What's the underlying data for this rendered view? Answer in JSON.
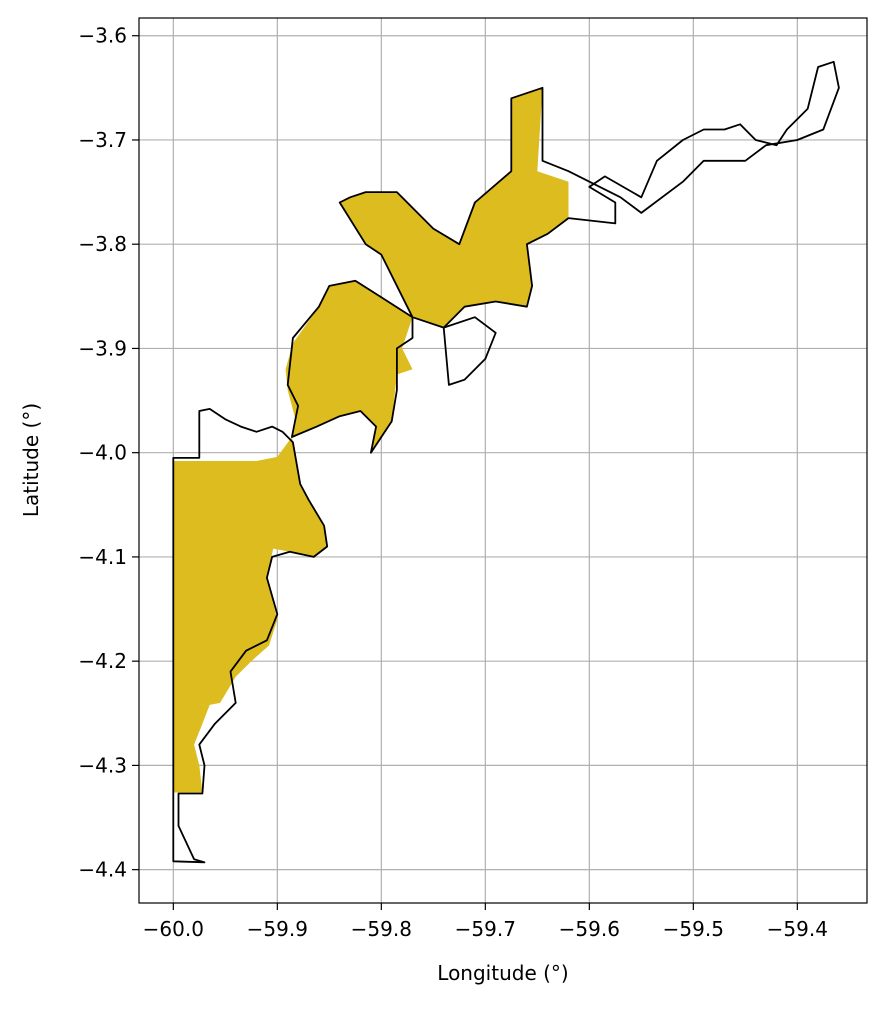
{
  "chart_data": {
    "type": "map",
    "title": "",
    "xlabel": "Longitude (°)",
    "ylabel": "Latitude (°)",
    "xlim": [
      -60.033,
      -59.333
    ],
    "ylim": [
      -4.432,
      -3.583
    ],
    "grid": true,
    "x_ticks": [
      -60.0,
      -59.9,
      -59.8,
      -59.7,
      -59.6,
      -59.5,
      -59.4
    ],
    "x_tick_labels": [
      "−60.0",
      "−59.9",
      "−59.8",
      "−59.7",
      "−59.6",
      "−59.5",
      "−59.4"
    ],
    "y_ticks": [
      -3.6,
      -3.7,
      -3.8,
      -3.9,
      -4.0,
      -4.1,
      -4.2,
      -4.3,
      -4.4
    ],
    "y_tick_labels": [
      "−3.6",
      "−3.7",
      "−3.8",
      "−3.9",
      "−4.0",
      "−4.1",
      "−4.2",
      "−4.3",
      "−4.4"
    ],
    "colors": {
      "fill": "#dcbc1f",
      "outline": "#000000",
      "grid": "#b0b0b0"
    },
    "fill_region": [
      [
        -60.0,
        -4.326
      ],
      [
        -60.0,
        -4.008
      ],
      [
        -59.96,
        -4.008
      ],
      [
        -59.92,
        -4.008
      ],
      [
        -59.9,
        -4.004
      ],
      [
        -59.886,
        -3.985
      ],
      [
        -59.878,
        -4.03
      ],
      [
        -59.87,
        -4.045
      ],
      [
        -59.855,
        -4.07
      ],
      [
        -59.852,
        -4.09
      ],
      [
        -59.865,
        -4.1
      ],
      [
        -59.888,
        -4.095
      ],
      [
        -59.904,
        -4.092
      ],
      [
        -59.91,
        -4.12
      ],
      [
        -59.905,
        -4.14
      ],
      [
        -59.9,
        -4.16
      ],
      [
        -59.908,
        -4.185
      ],
      [
        -59.925,
        -4.2
      ],
      [
        -59.94,
        -4.215
      ],
      [
        -59.955,
        -4.24
      ],
      [
        -59.965,
        -4.242
      ],
      [
        -59.972,
        -4.26
      ],
      [
        -59.98,
        -4.28
      ],
      [
        -59.975,
        -4.3
      ],
      [
        -59.972,
        -4.326
      ]
    ],
    "fill_region_2": [
      [
        -59.886,
        -3.985
      ],
      [
        -59.882,
        -3.97
      ],
      [
        -59.89,
        -3.94
      ],
      [
        -59.892,
        -3.92
      ],
      [
        -59.885,
        -3.895
      ],
      [
        -59.86,
        -3.86
      ],
      [
        -59.85,
        -3.84
      ],
      [
        -59.825,
        -3.835
      ],
      [
        -59.77,
        -3.87
      ],
      [
        -59.78,
        -3.9
      ],
      [
        -59.77,
        -3.92
      ],
      [
        -59.785,
        -3.925
      ],
      [
        -59.79,
        -3.97
      ],
      [
        -59.81,
        -4.0
      ],
      [
        -59.805,
        -3.975
      ],
      [
        -59.82,
        -3.96
      ],
      [
        -59.84,
        -3.965
      ],
      [
        -59.862,
        -3.975
      ]
    ],
    "fill_region_3": [
      [
        -59.77,
        -3.87
      ],
      [
        -59.74,
        -3.88
      ],
      [
        -59.72,
        -3.86
      ],
      [
        -59.69,
        -3.855
      ],
      [
        -59.66,
        -3.86
      ],
      [
        -59.655,
        -3.84
      ],
      [
        -59.66,
        -3.8
      ],
      [
        -59.64,
        -3.79
      ],
      [
        -59.62,
        -3.775
      ],
      [
        -59.62,
        -3.74
      ],
      [
        -59.65,
        -3.73
      ],
      [
        -59.645,
        -3.65
      ],
      [
        -59.675,
        -3.66
      ],
      [
        -59.675,
        -3.73
      ],
      [
        -59.71,
        -3.76
      ],
      [
        -59.725,
        -3.8
      ],
      [
        -59.75,
        -3.785
      ],
      [
        -59.785,
        -3.75
      ],
      [
        -59.815,
        -3.75
      ],
      [
        -59.83,
        -3.755
      ],
      [
        -59.84,
        -3.76
      ],
      [
        -59.815,
        -3.8
      ],
      [
        -59.8,
        -3.81
      ],
      [
        -59.79,
        -3.83
      ]
    ],
    "outline": [
      [
        -60.0,
        -4.392
      ],
      [
        -60.0,
        -4.005
      ],
      [
        -59.975,
        -4.005
      ],
      [
        -59.975,
        -3.96
      ],
      [
        -59.965,
        -3.958
      ],
      [
        -59.95,
        -3.968
      ],
      [
        -59.935,
        -3.975
      ],
      [
        -59.92,
        -3.98
      ],
      [
        -59.905,
        -3.975
      ],
      [
        -59.895,
        -3.98
      ],
      [
        -59.885,
        -3.99
      ],
      [
        -59.878,
        -4.03
      ],
      [
        -59.87,
        -4.045
      ],
      [
        -59.855,
        -4.07
      ],
      [
        -59.852,
        -4.09
      ],
      [
        -59.865,
        -4.1
      ],
      [
        -59.888,
        -4.095
      ],
      [
        -59.905,
        -4.1
      ],
      [
        -59.91,
        -4.12
      ],
      [
        -59.9,
        -4.155
      ],
      [
        -59.91,
        -4.18
      ],
      [
        -59.93,
        -4.19
      ],
      [
        -59.945,
        -4.21
      ],
      [
        -59.94,
        -4.24
      ],
      [
        -59.96,
        -4.26
      ],
      [
        -59.975,
        -4.28
      ],
      [
        -59.97,
        -4.3
      ],
      [
        -59.972,
        -4.327
      ],
      [
        -59.995,
        -4.327
      ],
      [
        -59.995,
        -4.358
      ],
      [
        -59.98,
        -4.39
      ],
      [
        -59.97,
        -4.393
      ],
      [
        -60.0,
        -4.392
      ]
    ],
    "outline_2": [
      [
        -59.886,
        -3.985
      ],
      [
        -59.88,
        -3.955
      ],
      [
        -59.89,
        -3.935
      ],
      [
        -59.885,
        -3.89
      ],
      [
        -59.86,
        -3.86
      ],
      [
        -59.85,
        -3.84
      ],
      [
        -59.825,
        -3.835
      ],
      [
        -59.77,
        -3.87
      ],
      [
        -59.77,
        -3.89
      ],
      [
        -59.785,
        -3.9
      ],
      [
        -59.785,
        -3.94
      ],
      [
        -59.79,
        -3.97
      ],
      [
        -59.81,
        -4.0
      ],
      [
        -59.805,
        -3.975
      ],
      [
        -59.82,
        -3.96
      ],
      [
        -59.84,
        -3.965
      ],
      [
        -59.862,
        -3.975
      ]
    ],
    "outline_3": [
      [
        -59.77,
        -3.87
      ],
      [
        -59.74,
        -3.88
      ],
      [
        -59.72,
        -3.86
      ],
      [
        -59.69,
        -3.855
      ],
      [
        -59.66,
        -3.86
      ],
      [
        -59.655,
        -3.84
      ],
      [
        -59.66,
        -3.8
      ],
      [
        -59.64,
        -3.79
      ],
      [
        -59.62,
        -3.775
      ],
      [
        -59.575,
        -3.78
      ],
      [
        -59.575,
        -3.76
      ],
      [
        -59.6,
        -3.745
      ],
      [
        -59.585,
        -3.735
      ],
      [
        -59.55,
        -3.755
      ],
      [
        -59.535,
        -3.72
      ],
      [
        -59.51,
        -3.7
      ],
      [
        -59.49,
        -3.69
      ],
      [
        -59.47,
        -3.69
      ],
      [
        -59.455,
        -3.685
      ],
      [
        -59.44,
        -3.7
      ],
      [
        -59.42,
        -3.705
      ],
      [
        -59.41,
        -3.69
      ],
      [
        -59.39,
        -3.67
      ],
      [
        -59.38,
        -3.63
      ],
      [
        -59.365,
        -3.625
      ],
      [
        -59.36,
        -3.65
      ],
      [
        -59.375,
        -3.69
      ],
      [
        -59.4,
        -3.7
      ],
      [
        -59.43,
        -3.705
      ],
      [
        -59.45,
        -3.72
      ],
      [
        -59.49,
        -3.72
      ],
      [
        -59.51,
        -3.74
      ],
      [
        -59.55,
        -3.77
      ],
      [
        -59.57,
        -3.755
      ],
      [
        -59.62,
        -3.73
      ],
      [
        -59.645,
        -3.72
      ],
      [
        -59.645,
        -3.65
      ],
      [
        -59.675,
        -3.66
      ],
      [
        -59.675,
        -3.73
      ],
      [
        -59.71,
        -3.76
      ],
      [
        -59.725,
        -3.8
      ],
      [
        -59.75,
        -3.785
      ],
      [
        -59.785,
        -3.75
      ],
      [
        -59.815,
        -3.75
      ],
      [
        -59.83,
        -3.755
      ],
      [
        -59.84,
        -3.76
      ],
      [
        -59.815,
        -3.8
      ],
      [
        -59.8,
        -3.81
      ],
      [
        -59.79,
        -3.83
      ]
    ],
    "outline_4": [
      [
        -59.74,
        -3.88
      ],
      [
        -59.735,
        -3.935
      ],
      [
        -59.72,
        -3.93
      ],
      [
        -59.7,
        -3.91
      ],
      [
        -59.69,
        -3.885
      ],
      [
        -59.71,
        -3.87
      ]
    ]
  }
}
